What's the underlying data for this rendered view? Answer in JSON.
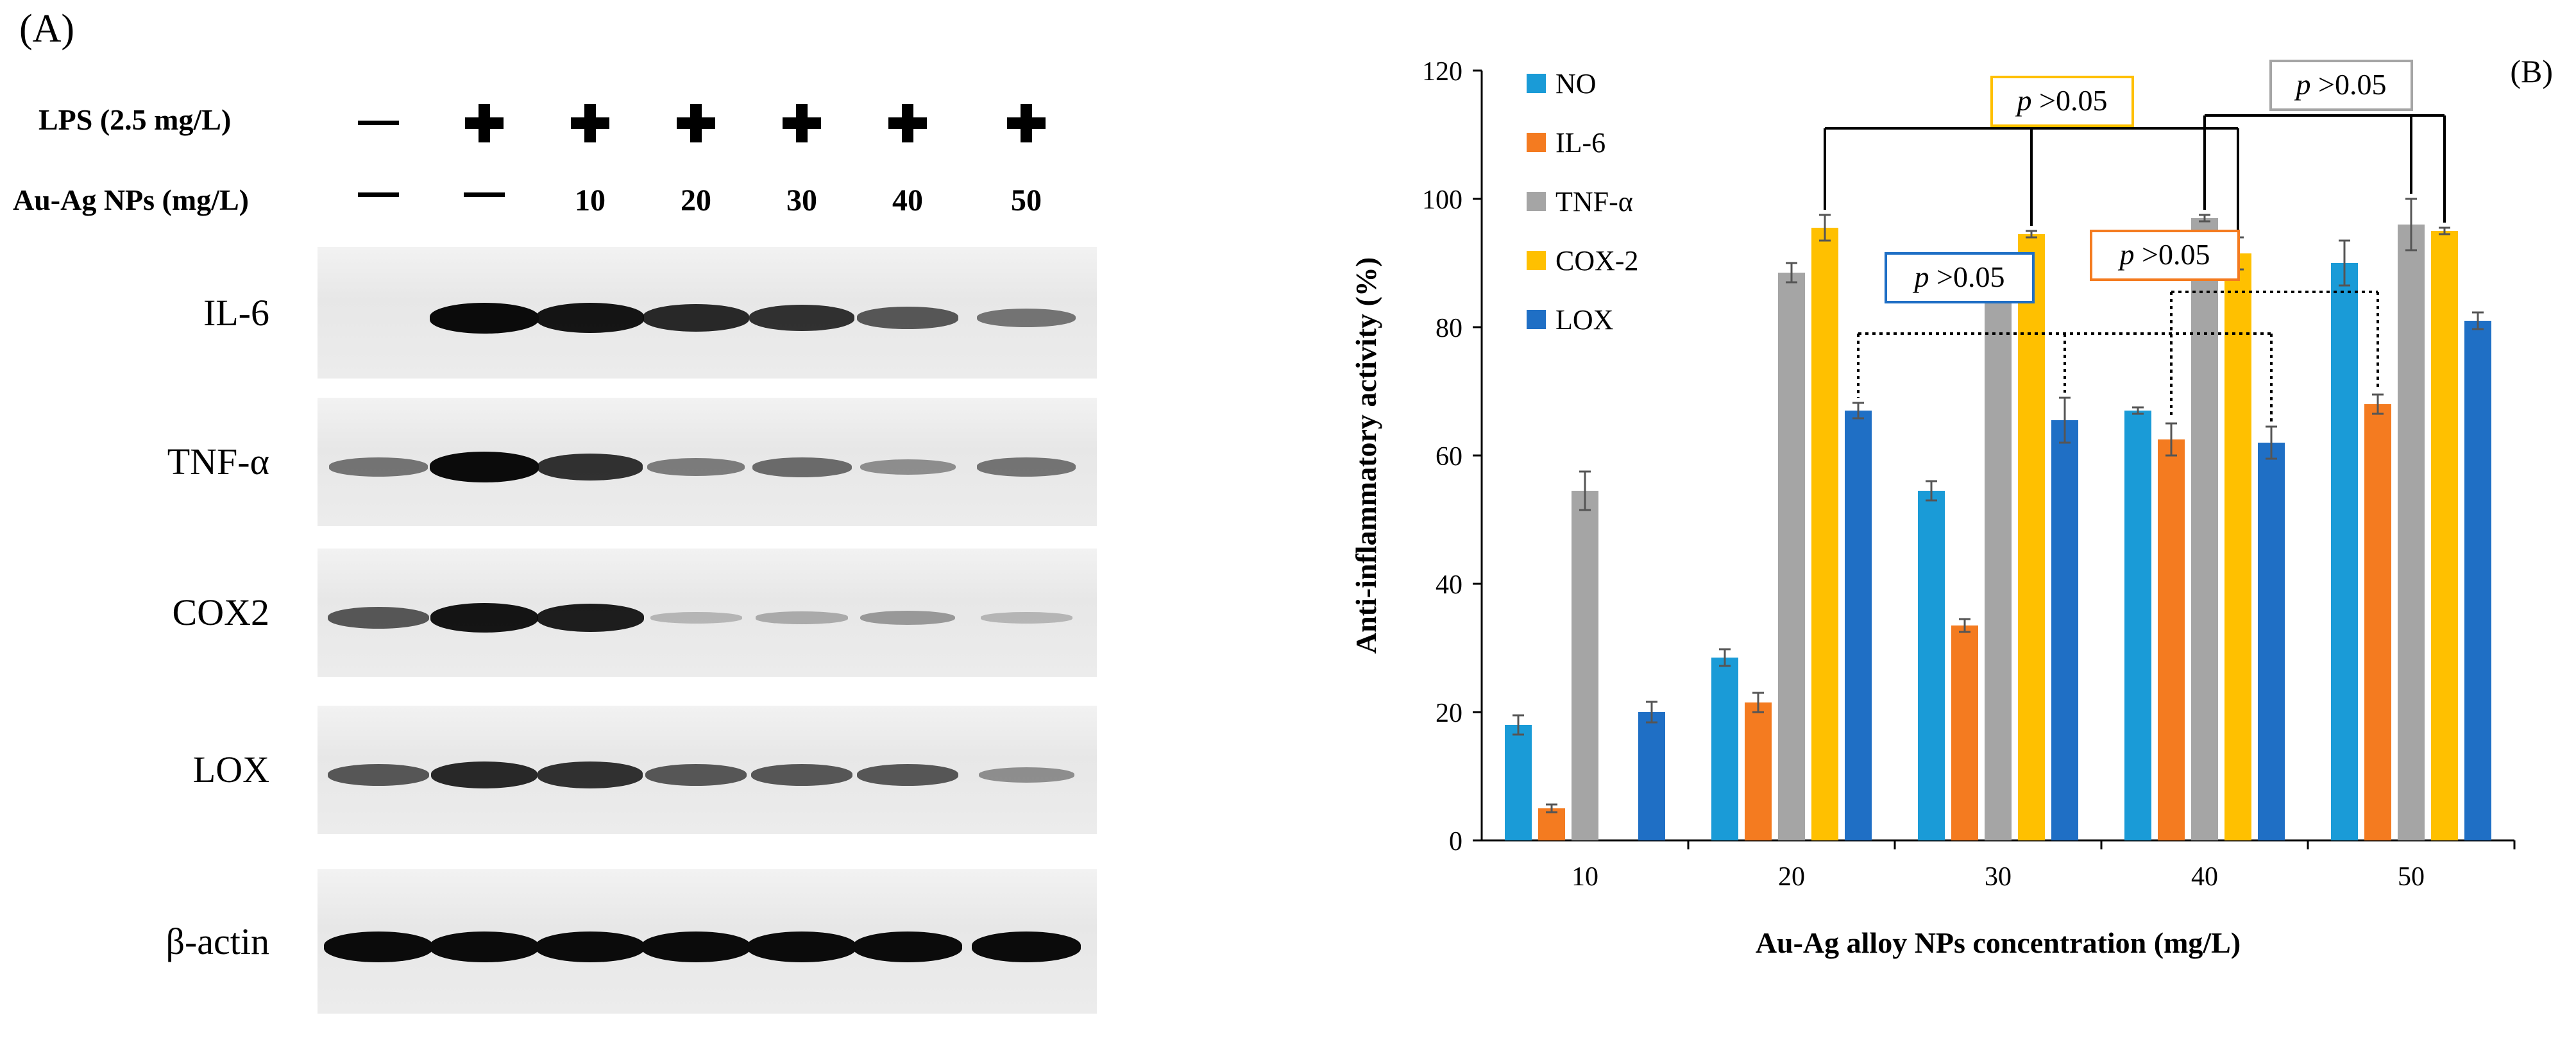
{
  "panel_a": {
    "letter": "(A)",
    "lps_label": "LPS (2.5 mg/L)",
    "np_label": "Au-Ag NPs (mg/L)",
    "lps_signs": [
      "—",
      "+",
      "+",
      "+",
      "+",
      "+",
      "+"
    ],
    "np_values": [
      "—",
      "—",
      "10",
      "20",
      "30",
      "40",
      "50"
    ],
    "blots": [
      {
        "label": "IL-6",
        "intensities": [
          0.0,
          1.0,
          0.95,
          0.85,
          0.8,
          0.6,
          0.45
        ]
      },
      {
        "label": "TNF-α",
        "intensities": [
          0.45,
          1.0,
          0.8,
          0.4,
          0.5,
          0.3,
          0.45
        ]
      },
      {
        "label": "COX2",
        "intensities": [
          0.6,
          0.95,
          0.9,
          0.1,
          0.15,
          0.25,
          0.1
        ]
      },
      {
        "label": "LOX",
        "intensities": [
          0.6,
          0.85,
          0.8,
          0.6,
          0.6,
          0.6,
          0.3
        ]
      },
      {
        "label": "β-actin",
        "intensities": [
          1.0,
          1.0,
          1.0,
          1.0,
          1.0,
          1.0,
          1.0
        ]
      }
    ]
  },
  "panel_b": {
    "letter": "(B)"
  },
  "chart_data": {
    "type": "bar",
    "xlabel": "Au-Ag alloy NPs concentration (mg/L)",
    "ylabel": "Anti-inflammatory  activity  (%)",
    "ylim": [
      0,
      120
    ],
    "yticks": [
      0,
      20,
      40,
      60,
      80,
      100,
      120
    ],
    "categories": [
      "10",
      "20",
      "30",
      "40",
      "50"
    ],
    "legend_position": "top-left",
    "series": [
      {
        "name": "NO",
        "color": "#1a9bd7",
        "values": [
          18,
          28.5,
          54.5,
          67,
          90
        ],
        "errors": [
          1.5,
          1.3,
          1.5,
          0.5,
          3.5
        ]
      },
      {
        "name": "IL-6",
        "color": "#f47b20",
        "values": [
          5,
          21.5,
          33.5,
          62.5,
          68
        ],
        "errors": [
          0.6,
          1.5,
          1.0,
          2.5,
          1.5
        ]
      },
      {
        "name": "TNF-α",
        "color": "#a5a5a5",
        "values": [
          54.5,
          88.5,
          91,
          97,
          96
        ],
        "errors": [
          3.0,
          1.5,
          0.5,
          0.5,
          4.0
        ]
      },
      {
        "name": "COX-2",
        "color": "#ffc000",
        "values": [
          null,
          95.5,
          94.5,
          91.5,
          95
        ],
        "errors": [
          null,
          2.0,
          0.5,
          2.5,
          0.5
        ]
      },
      {
        "name": "LOX",
        "color": "#1f6fc5",
        "values": [
          20,
          67,
          65.5,
          62,
          81
        ],
        "errors": [
          1.6,
          1.2,
          3.5,
          2.5,
          1.3
        ]
      }
    ],
    "annotations": [
      {
        "text_p": "p",
        "text_rest": " >0.05",
        "color": "#ffc000"
      },
      {
        "text_p": "p",
        "text_rest": " >0.05",
        "color": "#a5a5a5"
      },
      {
        "text_p": "p",
        "text_rest": " >0.05",
        "color": "#1f6fc5"
      },
      {
        "text_p": "p",
        "text_rest": " >0.05",
        "color": "#f47b20"
      }
    ]
  }
}
